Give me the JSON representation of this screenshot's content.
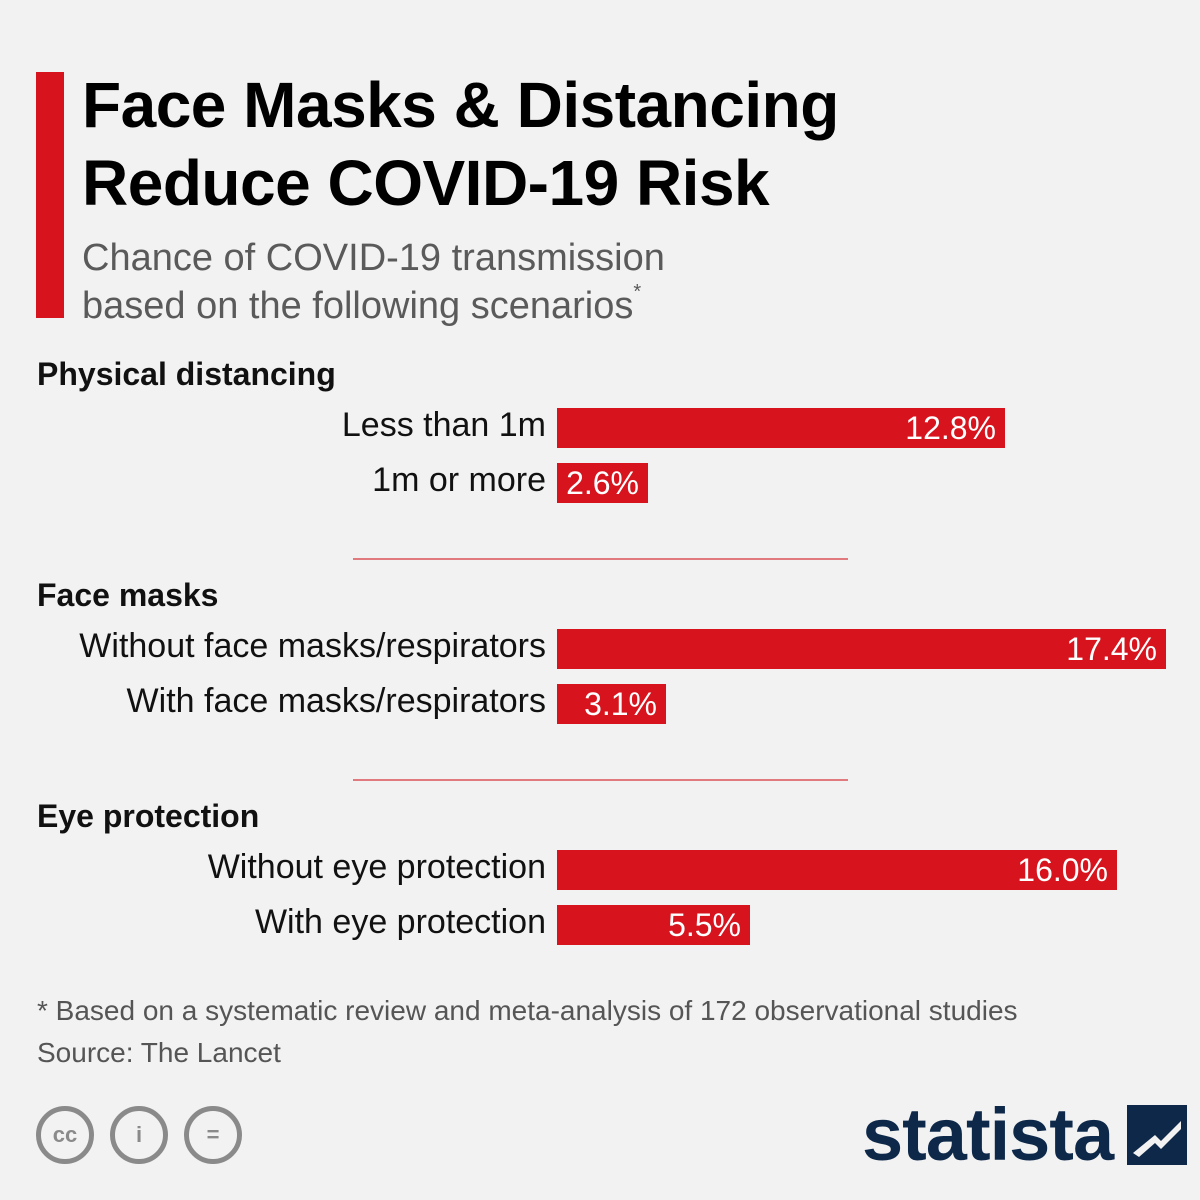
{
  "header": {
    "title_line1": "Face Masks & Distancing",
    "title_line2": "Reduce COVID-19 Risk",
    "subtitle_line1": "Chance of COVID-19 transmission",
    "subtitle_line2": "based on the following scenarios",
    "subtitle_mark": "*",
    "accent_color": "#d7141e"
  },
  "chart_data": {
    "type": "bar",
    "orientation": "horizontal",
    "unit": "%",
    "xlim": [
      0,
      17.4
    ],
    "groups": [
      {
        "name": "Physical distancing",
        "categories": [
          "Less than 1m",
          "1m or more"
        ],
        "values": [
          12.8,
          2.6
        ],
        "labels": [
          "12.8%",
          "2.6%"
        ]
      },
      {
        "name": "Face masks",
        "categories": [
          "Without face masks/respirators",
          "With face masks/respirators"
        ],
        "values": [
          17.4,
          3.1
        ],
        "labels": [
          "17.4%",
          "3.1%"
        ]
      },
      {
        "name": "Eye protection",
        "categories": [
          "Without eye protection",
          "With eye protection"
        ],
        "values": [
          16.0,
          5.5
        ],
        "labels": [
          "16.0%",
          "5.5%"
        ]
      }
    ],
    "bar_color": "#d7141e"
  },
  "footer": {
    "note": "* Based on a systematic review and meta-analysis of 172 observational studies",
    "source": "Source: The Lancet",
    "license_icons": [
      {
        "name": "cc-icon",
        "glyph": "cc"
      },
      {
        "name": "attribution-icon",
        "glyph": "i"
      },
      {
        "name": "no-derivatives-icon",
        "glyph": "="
      }
    ],
    "brand": "statista",
    "brand_color": "#0e2849"
  }
}
